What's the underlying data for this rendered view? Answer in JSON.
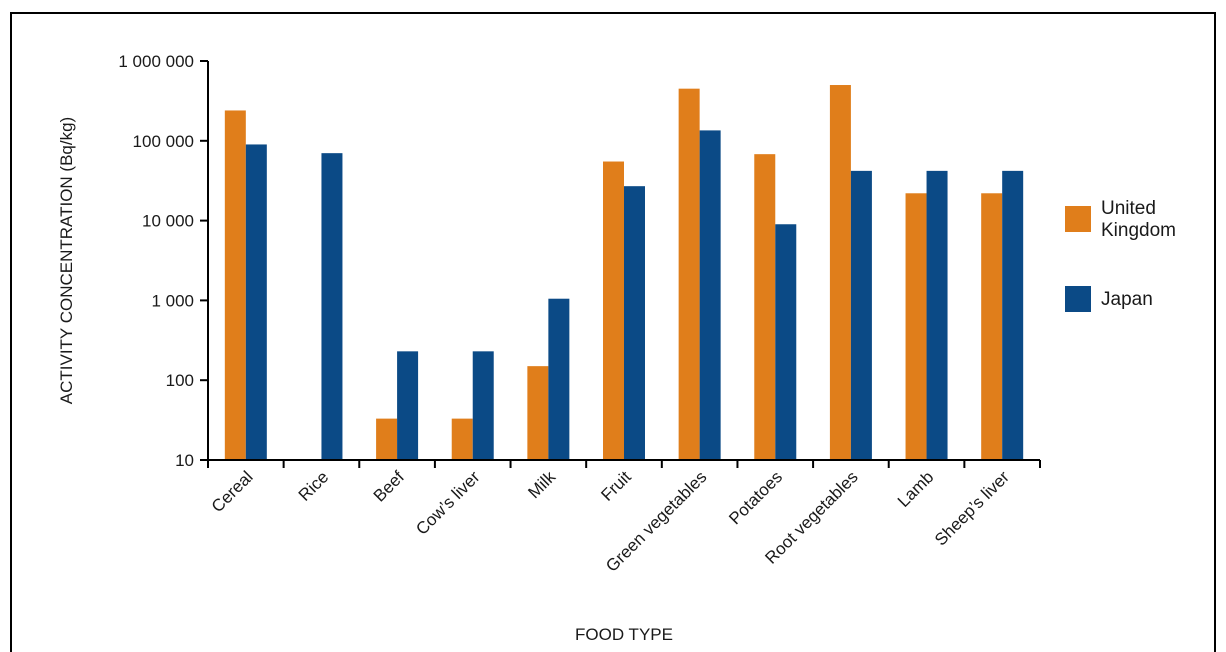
{
  "chart_data": {
    "type": "bar",
    "scale": "log",
    "xlabel": "FOOD TYPE",
    "ylabel": "ACTIVITY CONCENTRATION (Bq/kg)",
    "ylim": [
      10,
      1000000
    ],
    "yticks": [
      10,
      100,
      1000,
      10000,
      100000,
      1000000
    ],
    "ytick_labels": [
      "10",
      "100",
      "1 000",
      "10 000",
      "100 000",
      "1 000 000"
    ],
    "categories": [
      "Cereal",
      "Rice",
      "Beef",
      "Cow’s liver",
      "Milk",
      "Fruit",
      "Green vegetables",
      "Potatoes",
      "Root vegetables",
      "Lamb",
      "Sheep’s liver"
    ],
    "series": [
      {
        "name": "United Kingdom",
        "legend_lines": [
          "United",
          "Kingdom"
        ],
        "color": "#E07E1B",
        "values": [
          240000,
          null,
          33,
          33,
          150,
          55000,
          450000,
          68000,
          500000,
          22000,
          22000
        ]
      },
      {
        "name": "Japan",
        "legend_lines": [
          "Japan"
        ],
        "color": "#0B4A86",
        "values": [
          90000,
          70000,
          230,
          230,
          1050,
          27000,
          135000,
          9000,
          42000,
          42000,
          42000
        ]
      }
    ],
    "grid": false,
    "legend_position": "right"
  }
}
